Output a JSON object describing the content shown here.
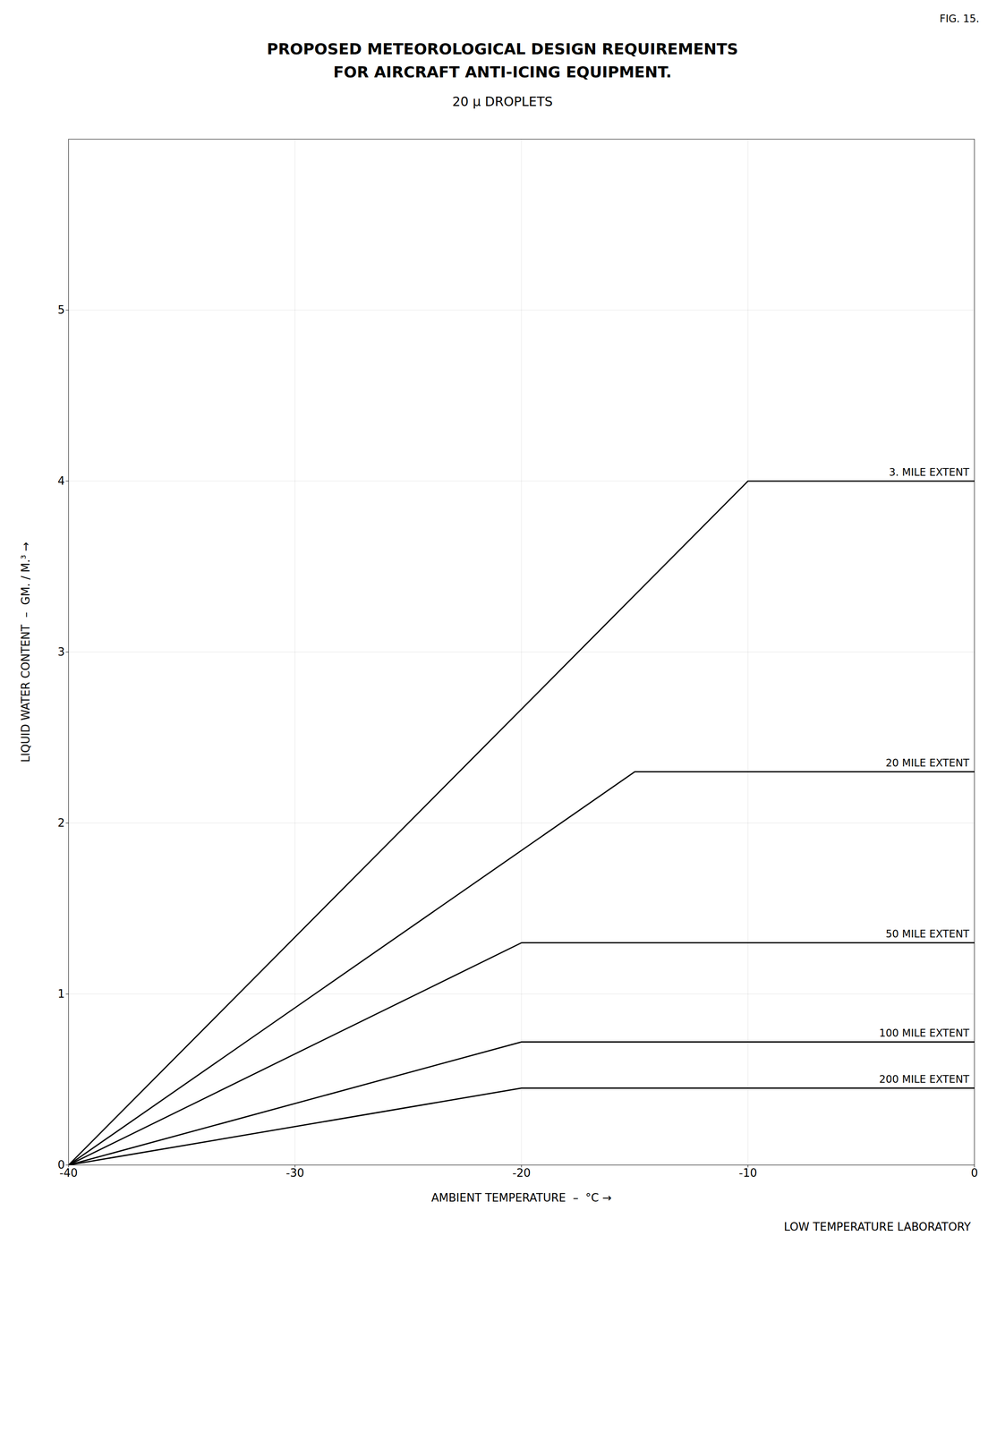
{
  "chart_data": {
    "type": "line",
    "title": "PROPOSED METEOROLOGICAL DESIGN REQUIREMENTS\nFOR AIRCRAFT ANTI-ICING EQUIPMENT.",
    "subtitle": "20 μ DROPLETS",
    "annotations": [
      "FIG. 15.",
      "LOW TEMPERATURE LABORATORY"
    ],
    "xlabel": "AMBIENT TEMPERATURE  –  °C",
    "ylabel": "LIQUID WATER CONTENT  –  GM. / M.³",
    "xlim": [
      -40,
      0
    ],
    "ylim": [
      0,
      6.0
    ],
    "xticks": [
      -40,
      -30,
      -20,
      -10,
      0
    ],
    "yticks": [
      0,
      1,
      2,
      3,
      4,
      5
    ],
    "grid": true,
    "series": [
      {
        "name": "3. MILE EXTENT",
        "x": [
          -40,
          -10,
          0
        ],
        "values": [
          0,
          4.0,
          4.0
        ]
      },
      {
        "name": "20 MILE EXTENT",
        "x": [
          -40,
          -15,
          0
        ],
        "values": [
          0,
          2.3,
          2.3
        ]
      },
      {
        "name": "50 MILE EXTENT",
        "x": [
          -40,
          -20,
          0
        ],
        "values": [
          0,
          1.3,
          1.3
        ]
      },
      {
        "name": "100 MILE EXTENT",
        "x": [
          -40,
          -20,
          0
        ],
        "values": [
          0,
          0.72,
          0.72
        ]
      },
      {
        "name": "200 MILE EXTENT",
        "x": [
          -40,
          -20,
          0
        ],
        "values": [
          0,
          0.45,
          0.45
        ]
      }
    ]
  }
}
